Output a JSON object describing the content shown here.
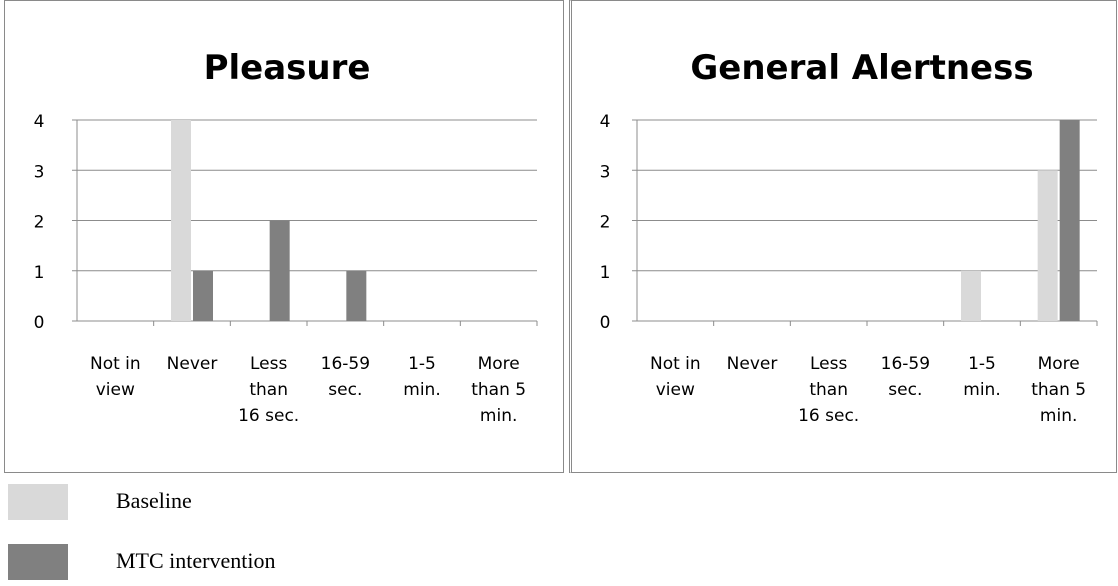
{
  "chart_data": [
    {
      "type": "bar",
      "title": "Pleasure",
      "categories": [
        [
          "Not in",
          "view"
        ],
        [
          "Never"
        ],
        [
          "Less",
          "than",
          "16 sec."
        ],
        [
          "16-59",
          "sec."
        ],
        [
          "1-5",
          "min."
        ],
        [
          "More",
          "than 5",
          "min."
        ]
      ],
      "series": [
        {
          "name": "Baseline",
          "values": [
            0,
            4,
            0,
            0,
            0,
            0
          ]
        },
        {
          "name": "MTC intervention",
          "values": [
            0,
            1,
            2,
            1,
            0,
            0
          ]
        }
      ],
      "ylim": [
        0,
        4
      ],
      "yticks": [
        0,
        1,
        2,
        3,
        4
      ],
      "grid": true
    },
    {
      "type": "bar",
      "title": "General Alertness",
      "categories": [
        [
          "Not in",
          "view"
        ],
        [
          "Never"
        ],
        [
          "Less",
          "than",
          "16 sec."
        ],
        [
          "16-59",
          "sec."
        ],
        [
          "1-5",
          "min."
        ],
        [
          "More",
          "than 5",
          "min."
        ]
      ],
      "series": [
        {
          "name": "Baseline",
          "values": [
            0,
            0,
            0,
            0,
            1,
            3
          ]
        },
        {
          "name": "MTC intervention",
          "values": [
            0,
            0,
            0,
            0,
            0,
            4
          ]
        }
      ],
      "ylim": [
        0,
        4
      ],
      "yticks": [
        0,
        1,
        2,
        3,
        4
      ],
      "grid": true
    }
  ],
  "legend": {
    "position": "bottom-left",
    "items": [
      {
        "label": "Baseline",
        "color": "#d9d9d9"
      },
      {
        "label": "MTC intervention",
        "color": "#808080"
      }
    ]
  }
}
